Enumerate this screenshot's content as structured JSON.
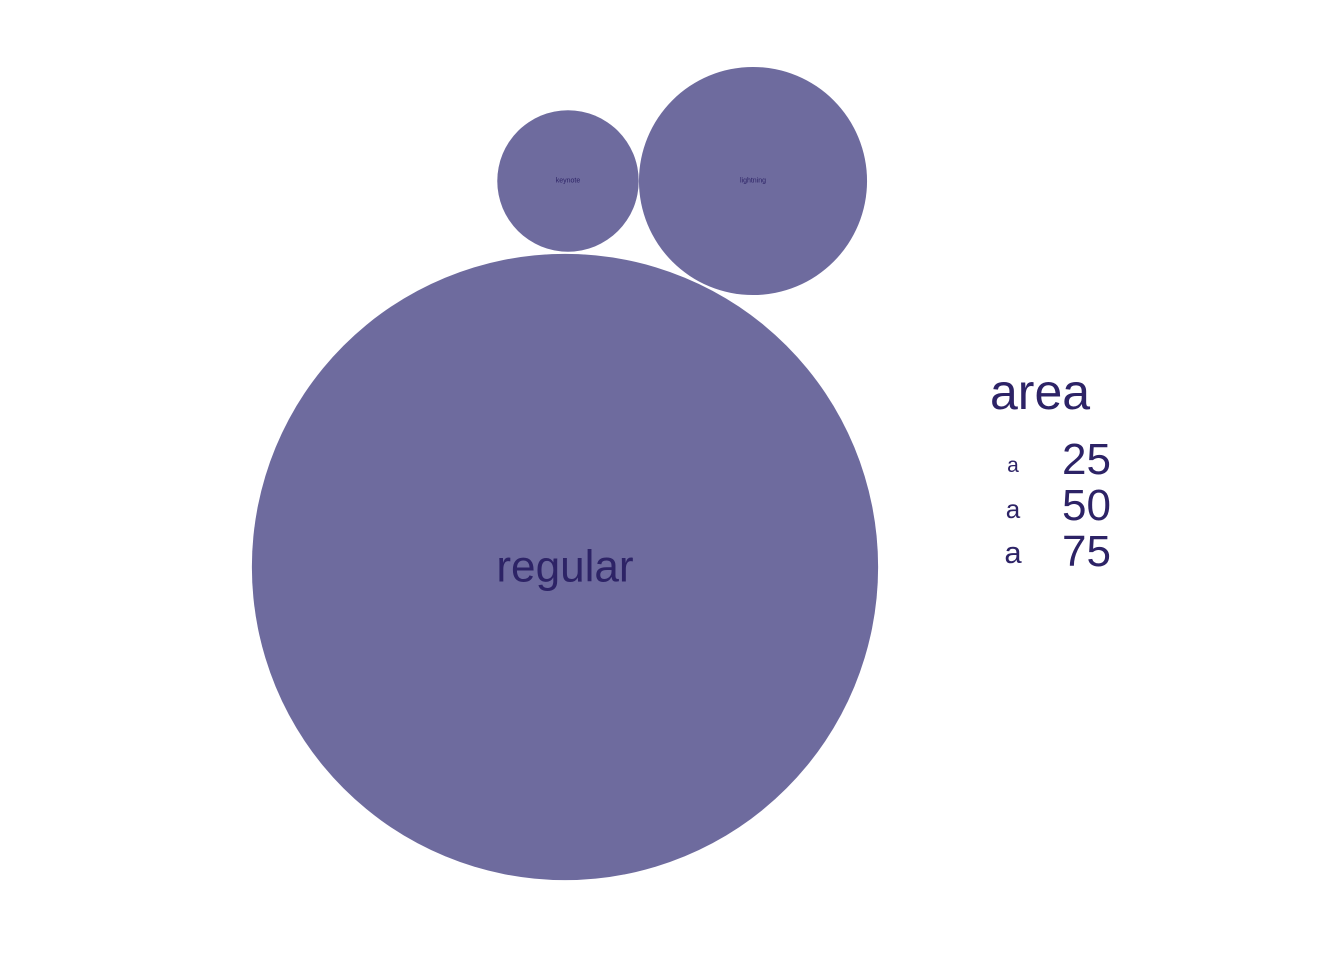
{
  "chart_data": {
    "type": "bubble",
    "mark_color": "#6e6b9e",
    "text_color": "#2d2366",
    "bubbles": [
      {
        "label": "keynote",
        "area": 5
      },
      {
        "label": "lightning",
        "area": 13
      },
      {
        "label": "regular",
        "area": 98
      }
    ],
    "legend": {
      "title": "area",
      "key_glyph": "a",
      "entries": [
        {
          "label": "25",
          "value": 25
        },
        {
          "label": "50",
          "value": 50
        },
        {
          "label": "75",
          "value": 75
        }
      ]
    }
  }
}
